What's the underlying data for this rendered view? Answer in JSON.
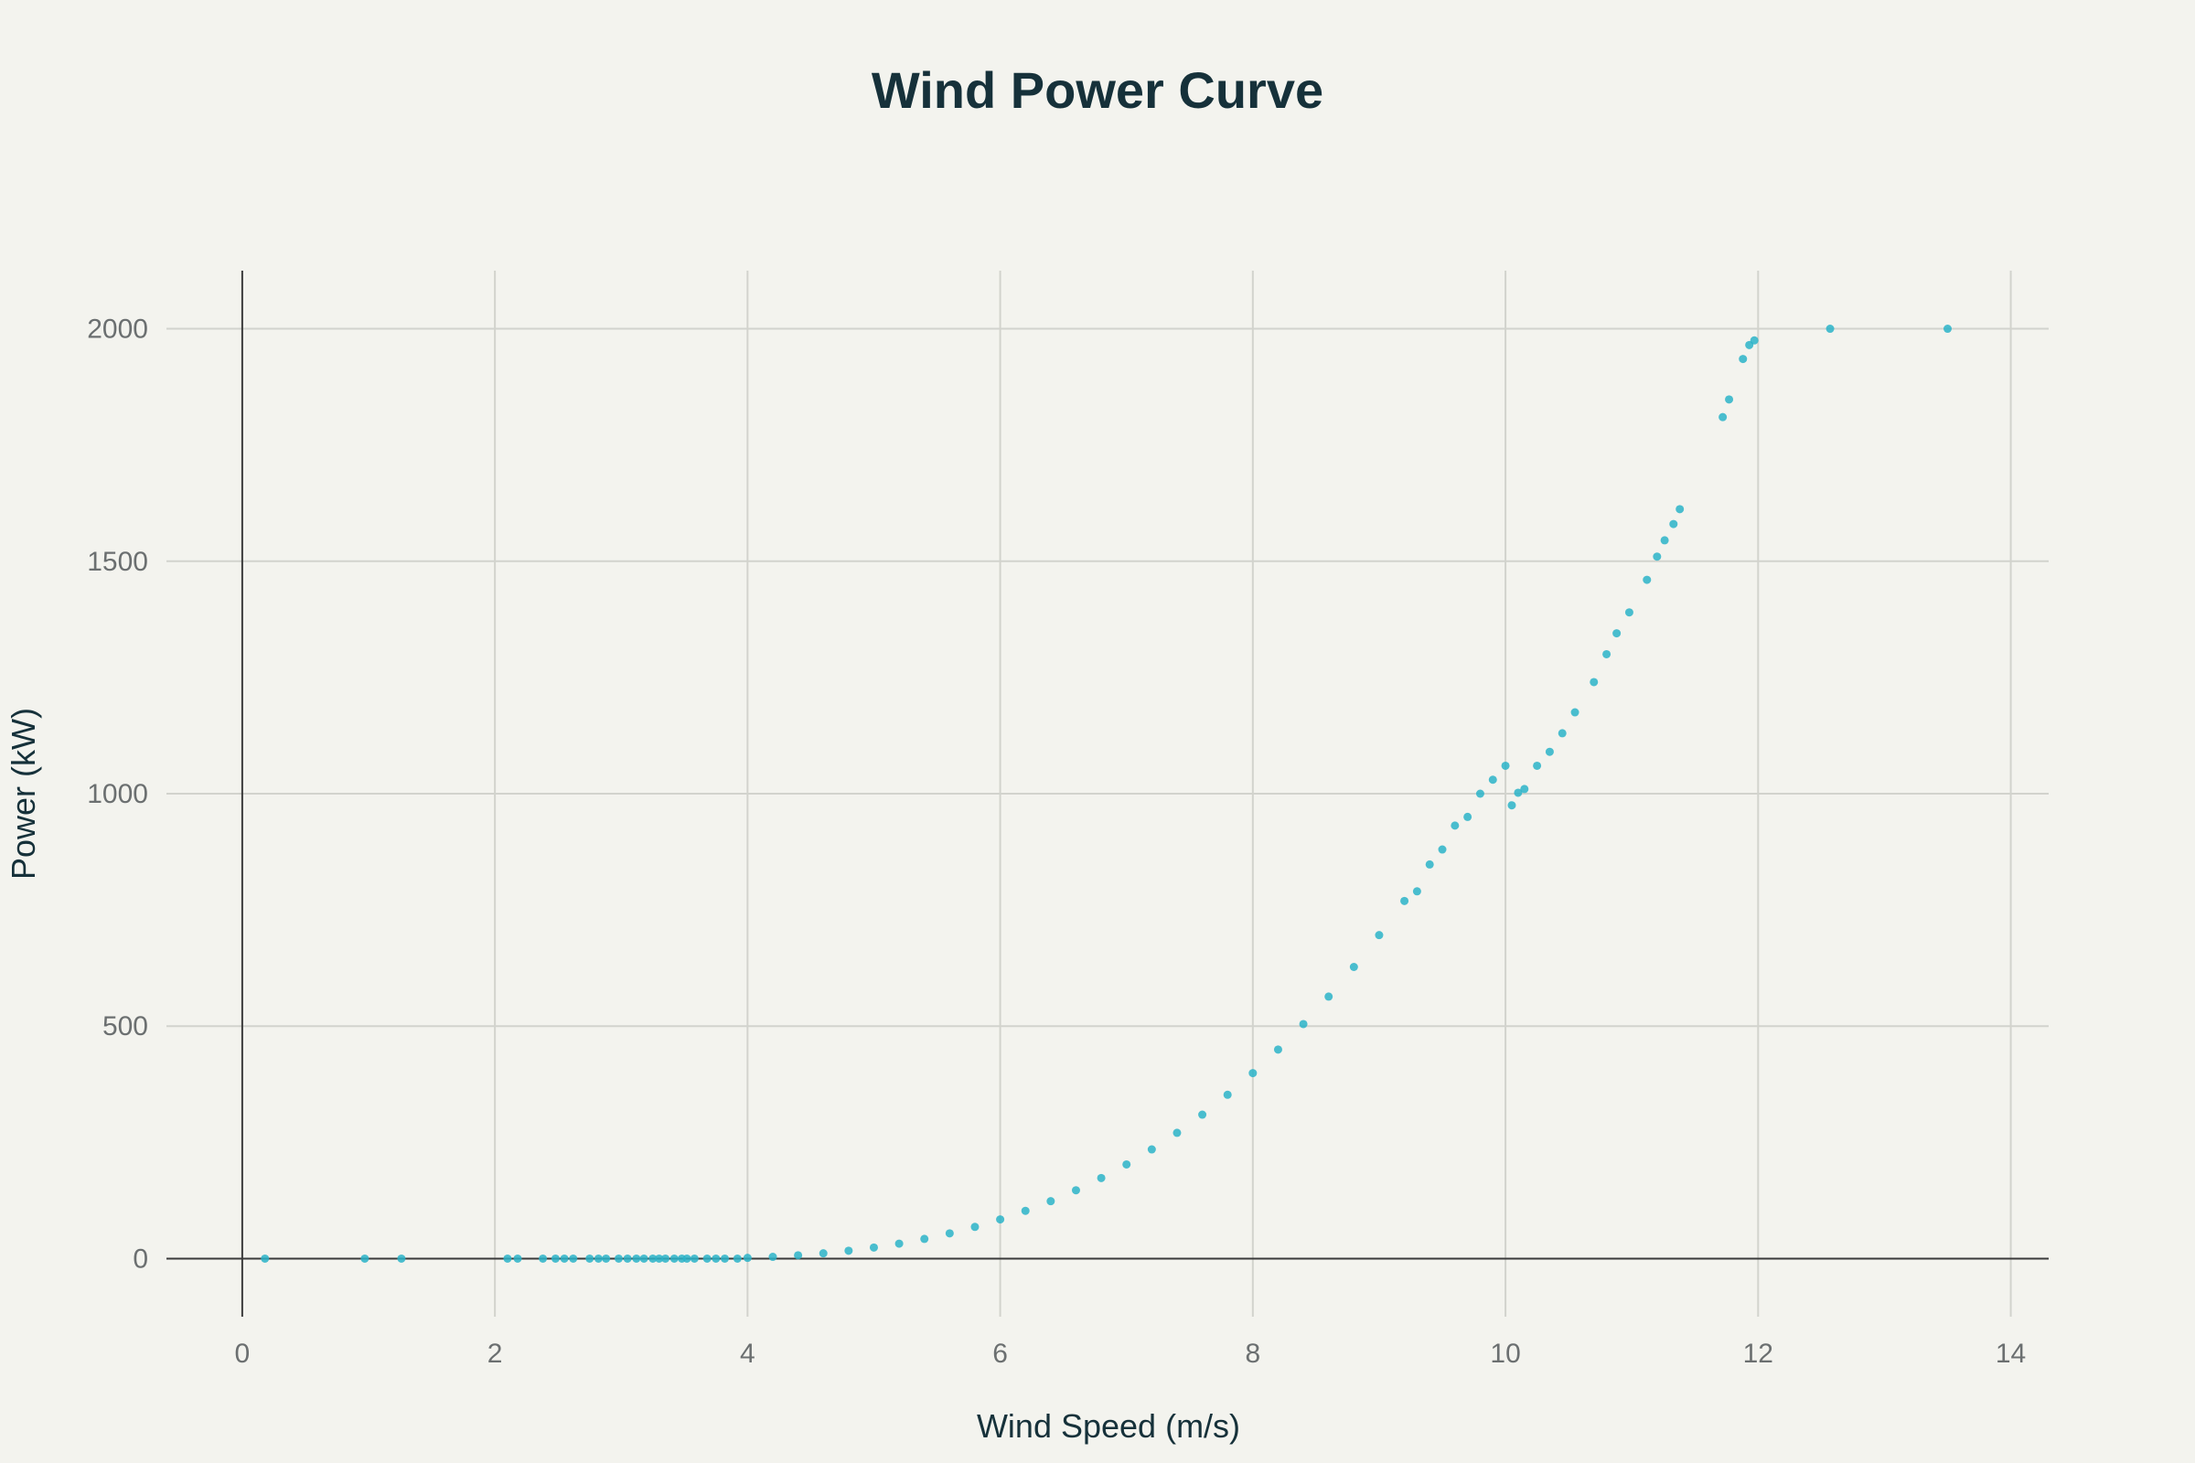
{
  "chart_data": {
    "type": "scatter",
    "title": "Wind Power Curve",
    "xlabel": "Wind Speed (m/s)",
    "ylabel": "Power (kW)",
    "xlim": [
      -0.6,
      14.3
    ],
    "ylim": [
      -125,
      2125
    ],
    "xticks": [
      0,
      2,
      4,
      6,
      8,
      10,
      12,
      14
    ],
    "yticks": [
      0,
      500,
      1000,
      1500,
      2000
    ],
    "xtick_labels": [
      "0",
      "2",
      "4",
      "6",
      "8",
      "10",
      "12",
      "14"
    ],
    "ytick_labels": [
      "0",
      "500",
      "1000",
      "1500",
      "2000"
    ],
    "grid": true,
    "marker_color": "#2ab3c8",
    "points": [
      [
        0.18,
        0
      ],
      [
        0.97,
        0
      ],
      [
        1.26,
        0
      ],
      [
        2.1,
        0
      ],
      [
        2.18,
        0
      ],
      [
        2.38,
        0
      ],
      [
        2.48,
        0
      ],
      [
        2.55,
        0
      ],
      [
        2.62,
        0
      ],
      [
        2.75,
        0
      ],
      [
        2.82,
        0
      ],
      [
        2.88,
        0
      ],
      [
        2.98,
        0
      ],
      [
        3.05,
        0
      ],
      [
        3.12,
        0
      ],
      [
        3.18,
        0
      ],
      [
        3.25,
        0
      ],
      [
        3.3,
        0
      ],
      [
        3.35,
        0
      ],
      [
        3.42,
        0
      ],
      [
        3.48,
        0
      ],
      [
        3.52,
        0
      ],
      [
        3.58,
        0
      ],
      [
        3.68,
        0
      ],
      [
        3.75,
        0
      ],
      [
        3.82,
        0
      ],
      [
        3.92,
        0
      ],
      [
        4.0,
        1.5
      ],
      [
        4.2,
        3.8
      ],
      [
        4.4,
        7.1
      ],
      [
        4.6,
        11.4
      ],
      [
        4.8,
        16.9
      ],
      [
        5.0,
        23.8
      ],
      [
        5.2,
        32.2
      ],
      [
        5.4,
        42.4
      ],
      [
        5.6,
        54.3
      ],
      [
        5.8,
        68.2
      ],
      [
        6.0,
        84.3
      ],
      [
        6.2,
        102.7
      ],
      [
        6.4,
        123.5
      ],
      [
        6.6,
        147.0
      ],
      [
        6.8,
        173.3
      ],
      [
        7.0,
        202.5
      ],
      [
        7.2,
        234.8
      ],
      [
        7.4,
        270.5
      ],
      [
        7.6,
        309.6
      ],
      [
        7.8,
        352.4
      ],
      [
        8.0,
        399.0
      ],
      [
        8.2,
        449.6
      ],
      [
        8.4,
        504.4
      ],
      [
        8.6,
        563.6
      ],
      [
        8.8,
        627.3
      ],
      [
        9.0,
        695.8
      ],
      [
        9.2,
        769.2
      ],
      [
        9.4,
        847.7
      ],
      [
        9.6,
        931.4
      ],
      [
        9.8,
        1000
      ],
      [
        10.0,
        1060
      ],
      [
        9.3,
        790
      ],
      [
        9.5,
        880
      ],
      [
        9.7,
        950
      ],
      [
        9.9,
        1030
      ],
      [
        10.05,
        975
      ],
      [
        10.1,
        1002
      ],
      [
        10.15,
        1010
      ],
      [
        10.25,
        1060
      ],
      [
        10.35,
        1090
      ],
      [
        10.45,
        1130
      ],
      [
        10.55,
        1175
      ],
      [
        10.7,
        1240
      ],
      [
        10.8,
        1300
      ],
      [
        10.88,
        1345
      ],
      [
        10.98,
        1390
      ],
      [
        11.12,
        1460
      ],
      [
        11.2,
        1510
      ],
      [
        11.26,
        1545
      ],
      [
        11.33,
        1580
      ],
      [
        11.38,
        1612
      ],
      [
        11.72,
        1810
      ],
      [
        11.77,
        1848
      ],
      [
        11.88,
        1935
      ],
      [
        11.93,
        1965
      ],
      [
        11.97,
        1975
      ],
      [
        12.57,
        2000
      ],
      [
        13.5,
        2000
      ]
    ]
  }
}
